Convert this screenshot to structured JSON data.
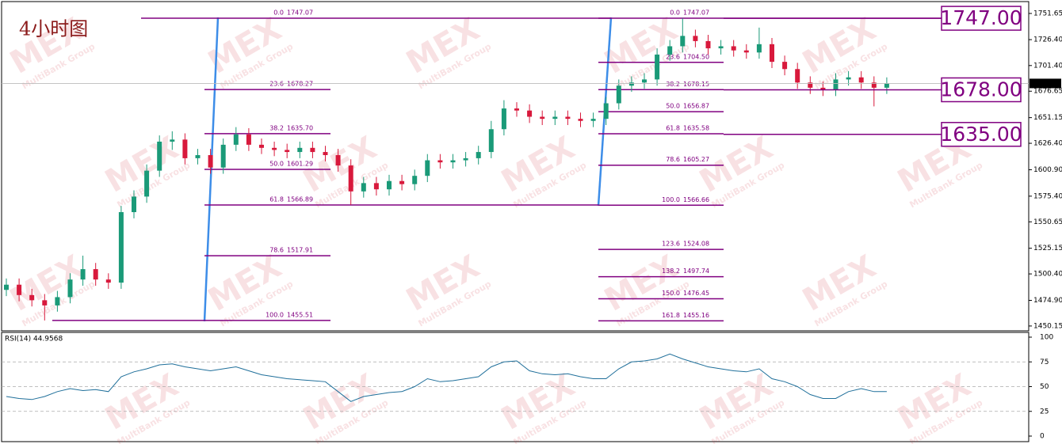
{
  "chart_data": [
    {
      "type": "candlestick",
      "title": "4小时图",
      "watermark": {
        "logo": "MEX",
        "text": "MultiBank Group"
      },
      "up_color": "#1a9a78",
      "down_color": "#d8193c",
      "fib_color": "#800080",
      "trend_color": "#3d8de8",
      "ylim": [
        1445.5,
        1763.1
      ],
      "yticks": [
        1751.65,
        {
          "value": 1726.4,
          "label": "1726.40"
        },
        {
          "value": 1701.4,
          "label": "1701.40"
        },
        1676.65,
        1651.15,
        {
          "value": 1626.4,
          "label": "1626.40"
        },
        {
          "value": 1600.9,
          "label": "1600.90"
        },
        {
          "value": 1575.4,
          "label": "1575.40"
        },
        1550.65,
        1525.15,
        {
          "value": 1500.4,
          "label": "1500.40"
        },
        {
          "value": 1474.9,
          "label": "1474.90"
        },
        1450.15
      ],
      "current_price": 1684.14,
      "open": [
        1485,
        1490,
        1480,
        1475,
        1470,
        1478,
        1495,
        1505,
        1495,
        1492,
        1560,
        1575,
        1600,
        1628,
        1630,
        1612,
        1615,
        1603,
        1625,
        1635,
        1625,
        1622,
        1620,
        1618,
        1622,
        1618,
        1615,
        1605,
        1580,
        1588,
        1582,
        1590,
        1587,
        1595,
        1610,
        1608,
        1610,
        1612,
        1618,
        1640,
        1660,
        1658,
        1652,
        1650,
        1652,
        1650,
        1648,
        1650,
        1665,
        1682,
        1685,
        1688,
        1712,
        1720,
        1730,
        1725,
        1718,
        1720,
        1716,
        1714,
        1722,
        1705,
        1698,
        1685,
        1680,
        1678,
        1688,
        1690,
        1685,
        1680
      ],
      "high": [
        1496,
        1496,
        1486,
        1481,
        1484,
        1501,
        1518,
        1511,
        1501,
        1566,
        1581,
        1606,
        1634,
        1638,
        1636,
        1621,
        1621,
        1631,
        1642,
        1641,
        1631,
        1628,
        1626,
        1628,
        1628,
        1624,
        1621,
        1611,
        1594,
        1594,
        1596,
        1596,
        1601,
        1616,
        1616,
        1616,
        1618,
        1624,
        1648,
        1668,
        1666,
        1664,
        1658,
        1658,
        1658,
        1656,
        1656,
        1671,
        1688,
        1691,
        1694,
        1718,
        1726,
        1747,
        1736,
        1731,
        1726,
        1726,
        1722,
        1738,
        1728,
        1711,
        1704,
        1691,
        1686,
        1694,
        1696,
        1696,
        1691,
        1690
      ],
      "low": [
        1479,
        1474,
        1469,
        1455.5,
        1464,
        1472,
        1489,
        1489,
        1486,
        1486,
        1554,
        1569,
        1594,
        1620,
        1606,
        1606,
        1597,
        1597,
        1619,
        1619,
        1616,
        1614,
        1612,
        1612,
        1612,
        1609,
        1599,
        1567,
        1574,
        1576,
        1576,
        1581,
        1581,
        1589,
        1602,
        1602,
        1604,
        1606,
        1612,
        1634,
        1652,
        1646,
        1644,
        1644,
        1644,
        1642,
        1642,
        1644,
        1659,
        1676,
        1679,
        1682,
        1706,
        1714,
        1719,
        1712,
        1712,
        1710,
        1708,
        1708,
        1699,
        1692,
        1679,
        1674,
        1672,
        1672,
        1682,
        1679,
        1662,
        1674
      ],
      "close": [
        1490,
        1480,
        1475,
        1470,
        1478,
        1495,
        1505,
        1495,
        1492,
        1560,
        1575,
        1600,
        1628,
        1630,
        1612,
        1615,
        1603,
        1625,
        1635,
        1625,
        1622,
        1620,
        1618,
        1622,
        1618,
        1615,
        1605,
        1580,
        1588,
        1582,
        1590,
        1587,
        1595,
        1610,
        1608,
        1610,
        1612,
        1618,
        1640,
        1660,
        1658,
        1652,
        1650,
        1652,
        1650,
        1648,
        1650,
        1665,
        1682,
        1685,
        1688,
        1712,
        1720,
        1730,
        1725,
        1718,
        1720,
        1716,
        1714,
        1722,
        1705,
        1698,
        1685,
        1680,
        1678,
        1688,
        1690,
        1685,
        1680,
        1684
      ],
      "fib_sets": [
        {
          "levels": [
            {
              "level": "0.0",
              "price": 1747.07
            },
            {
              "level": "23.6",
              "price": 1678.27
            },
            {
              "level": "38.2",
              "price": {
                "value": 1635.7,
                "label": "1635.70"
              }
            },
            {
              "level": "50.0",
              "price": 1601.29
            },
            {
              "level": "61.8",
              "price": 1566.89
            },
            {
              "level": "78.6",
              "price": 1517.91
            },
            {
              "level": "100.0",
              "price": 1455.51
            }
          ]
        },
        {
          "levels": [
            {
              "level": "0.0",
              "price": 1747.07
            },
            {
              "level": "23.6",
              "price": {
                "value": 1704.5,
                "label": "1704.50"
              }
            },
            {
              "level": "38.2",
              "price": 1678.15
            },
            {
              "level": "50.0",
              "price": 1656.87
            },
            {
              "level": "61.8",
              "price": 1635.58
            },
            {
              "level": "78.6",
              "price": 1605.27
            },
            {
              "level": "100.0",
              "price": 1566.66
            },
            {
              "level": "123.6",
              "price": 1524.08
            },
            {
              "level": "138.2",
              "price": 1497.74
            },
            {
              "level": "150.0",
              "price": 1476.45
            },
            {
              "level": "161.8",
              "price": 1455.16
            }
          ]
        }
      ],
      "annotations": [
        {
          "value": 1747,
          "label": "1747.00"
        },
        {
          "value": 1678,
          "label": "1678.00"
        },
        {
          "value": 1635,
          "label": "1635.00"
        }
      ]
    },
    {
      "type": "line",
      "title": "RSI(14) 44.9568",
      "color": "#1f6f9a",
      "ylim": [
        -5.6,
        104.8
      ],
      "yticks": [
        0,
        25,
        50,
        75,
        100
      ],
      "grid": [
        25,
        50,
        75
      ],
      "values": [
        40,
        38,
        37,
        40,
        45,
        48,
        46,
        47,
        45,
        60,
        65,
        68,
        72,
        73,
        70,
        68,
        66,
        68,
        70,
        66,
        62,
        60,
        58,
        57,
        56,
        55,
        45,
        35,
        40,
        42,
        44,
        45,
        50,
        58,
        55,
        56,
        58,
        60,
        70,
        75,
        76,
        66,
        63,
        62,
        63,
        60,
        58,
        58,
        68,
        75,
        76,
        78,
        83,
        78,
        74,
        70,
        68,
        66,
        65,
        68,
        58,
        55,
        50,
        42,
        38,
        38,
        45,
        48,
        45,
        44.96
      ]
    }
  ]
}
